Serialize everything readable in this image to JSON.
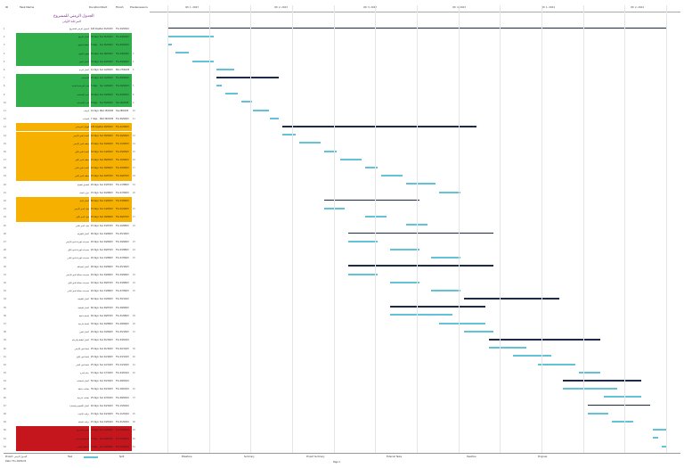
{
  "columns": {
    "id_label": "ID",
    "name_label": "Task Name",
    "duration_label": "Duration",
    "start_label": "Start",
    "finish_label": "Finish",
    "pred_label": "Predecessors"
  },
  "title": "الجدول الزمني للمشروع",
  "subtitle": "المرحلة الأولى",
  "timeline": [
    "Qtr 1, 2023",
    "Qtr 2, 2023",
    "Qtr 3, 2023",
    "Qtr 4, 2023",
    "Qtr 1, 2024",
    "Qtr 2, 2024"
  ],
  "highlight": {
    "green": "#2fae4a",
    "orange": "#f5b000",
    "red": "#c4161c",
    "bar": "#63c1d8"
  },
  "rows": [
    {
      "id": "1",
      "name": "الجدول الزمني للمشروع",
      "dur": "420 days",
      "start": "Sun 01/01/23",
      "finish": "Thu 29/02/24",
      "pred": "",
      "hl": ""
    },
    {
      "id": "2",
      "name": "أعمال الموقع",
      "dur": "30 days",
      "start": "Sun 01/01/23",
      "finish": "Thu 09/02/23",
      "pred": "",
      "hl": "green"
    },
    {
      "id": "3",
      "name": "استلام الموقع",
      "dur": "5 days",
      "start": "Sun 01/01/23",
      "finish": "Thu 05/01/23",
      "pred": "",
      "hl": "green"
    },
    {
      "id": "4",
      "name": "تجهيز الموقع",
      "dur": "10 days",
      "start": "Sun 08/01/23",
      "finish": "Thu 19/01/23",
      "pred": "3",
      "hl": "green"
    },
    {
      "id": "5",
      "name": "أعمال الحفر",
      "dur": "15 days",
      "start": "Sun 22/01/23",
      "finish": "Thu 09/02/23",
      "pred": "4",
      "hl": "green"
    },
    {
      "id": "6",
      "name": "أعمال الردم",
      "dur": "12 days",
      "start": "Sun 12/02/23",
      "finish": "Mon 27/02/23",
      "pred": "5",
      "hl": ""
    },
    {
      "id": "7",
      "name": "الأساسات",
      "dur": "40 days",
      "start": "Sun 12/02/23",
      "finish": "Thu 06/04/23",
      "pred": "",
      "hl": "green"
    },
    {
      "id": "8",
      "name": "صب الخرسانة العادية",
      "dur": "5 days",
      "start": "Sun 12/02/23",
      "finish": "Thu 16/02/23",
      "pred": "5",
      "hl": "green"
    },
    {
      "id": "9",
      "name": "حديد الأساسات",
      "dur": "10 days",
      "start": "Sun 19/02/23",
      "finish": "Thu 02/03/23",
      "pred": "8",
      "hl": "green"
    },
    {
      "id": "10",
      "name": "صب الأساسات",
      "dur": "8 days",
      "start": "Sun 05/03/23",
      "finish": "Tue 14/03/23",
      "pred": "9",
      "hl": "green"
    },
    {
      "id": "11",
      "name": "الرقاب",
      "dur": "10 days",
      "start": "Wed 15/03/23",
      "finish": "Tue 28/03/23",
      "pred": "10",
      "hl": ""
    },
    {
      "id": "12",
      "name": "الميدات",
      "dur": "7 days",
      "start": "Wed 29/03/23",
      "finish": "Thu 06/04/23",
      "pred": "11",
      "hl": ""
    },
    {
      "id": "13",
      "name": "الهيكل الخرساني",
      "dur": "120 days",
      "start": "Sun 09/04/23",
      "finish": "Thu 21/09/23",
      "pred": "",
      "hl": "orange"
    },
    {
      "id": "14",
      "name": "أعمدة الدور الأرضي",
      "dur": "10 days",
      "start": "Sun 09/04/23",
      "finish": "Thu 20/04/23",
      "pred": "12",
      "hl": "orange"
    },
    {
      "id": "15",
      "name": "سقف الدور الأرضي",
      "dur": "15 days",
      "start": "Sun 23/04/23",
      "finish": "Thu 11/05/23",
      "pred": "14",
      "hl": "orange"
    },
    {
      "id": "16",
      "name": "أعمدة الدور الأول",
      "dur": "10 days",
      "start": "Sun 14/05/23",
      "finish": "Thu 25/05/23",
      "pred": "15",
      "hl": "orange"
    },
    {
      "id": "17",
      "name": "سقف الدور الأول",
      "dur": "15 days",
      "start": "Sun 28/05/23",
      "finish": "Thu 15/06/23",
      "pred": "16",
      "hl": "orange"
    },
    {
      "id": "18",
      "name": "أعمدة الدور الثاني",
      "dur": "10 days",
      "start": "Sun 18/06/23",
      "finish": "Thu 29/06/23",
      "pred": "17",
      "hl": "orange"
    },
    {
      "id": "19",
      "name": "سقف الدور الثاني",
      "dur": "15 days",
      "start": "Sun 02/07/23",
      "finish": "Thu 20/07/23",
      "pred": "18",
      "hl": "orange"
    },
    {
      "id": "20",
      "name": "الملحق العلوي",
      "dur": "20 days",
      "start": "Sun 23/07/23",
      "finish": "Thu 17/08/23",
      "pred": "19",
      "hl": ""
    },
    {
      "id": "21",
      "name": "خزان المياه",
      "dur": "15 days",
      "start": "Sun 20/08/23",
      "finish": "Thu 07/09/23",
      "pred": "20",
      "hl": ""
    },
    {
      "id": "22",
      "name": "أعمال البناء",
      "dur": "60 days",
      "start": "Sun 14/05/23",
      "finish": "Thu 03/08/23",
      "pred": "",
      "hl": "orange"
    },
    {
      "id": "23",
      "name": "بلوك الدور الأرضي",
      "dur": "15 days",
      "start": "Sun 14/05/23",
      "finish": "Thu 01/06/23",
      "pred": "15",
      "hl": "orange"
    },
    {
      "id": "24",
      "name": "بلوك الدور الأول",
      "dur": "15 days",
      "start": "Sun 18/06/23",
      "finish": "Thu 06/07/23",
      "pred": "17",
      "hl": "orange"
    },
    {
      "id": "25",
      "name": "بلوك الدور الثاني",
      "dur": "15 days",
      "start": "Sun 23/07/23",
      "finish": "Thu 10/08/23",
      "pred": "19",
      "hl": ""
    },
    {
      "id": "26",
      "name": "أعمال الكهرباء",
      "dur": "90 days",
      "start": "Sun 04/06/23",
      "finish": "Thu 05/10/23",
      "pred": "",
      "hl": ""
    },
    {
      "id": "27",
      "name": "تمديدات كهرباء الدور الأرضي",
      "dur": "20 days",
      "start": "Sun 04/06/23",
      "finish": "Thu 29/06/23",
      "pred": "23",
      "hl": ""
    },
    {
      "id": "28",
      "name": "تمديدات كهرباء الدور الأول",
      "dur": "20 days",
      "start": "Sun 09/07/23",
      "finish": "Thu 03/08/23",
      "pred": "24",
      "hl": ""
    },
    {
      "id": "29",
      "name": "تمديدات كهرباء الدور الثاني",
      "dur": "20 days",
      "start": "Sun 13/08/23",
      "finish": "Thu 07/09/23",
      "pred": "25",
      "hl": ""
    },
    {
      "id": "30",
      "name": "أعمال السباكة",
      "dur": "90 days",
      "start": "Sun 04/06/23",
      "finish": "Thu 05/10/23",
      "pred": "",
      "hl": ""
    },
    {
      "id": "31",
      "name": "تمديدات سباكة الدور الأرضي",
      "dur": "20 days",
      "start": "Sun 04/06/23",
      "finish": "Thu 29/06/23",
      "pred": "23",
      "hl": ""
    },
    {
      "id": "32",
      "name": "تمديدات سباكة الدور الأول",
      "dur": "20 days",
      "start": "Sun 09/07/23",
      "finish": "Thu 03/08/23",
      "pred": "24",
      "hl": ""
    },
    {
      "id": "33",
      "name": "تمديدات سباكة الدور الثاني",
      "dur": "20 days",
      "start": "Sun 13/08/23",
      "finish": "Thu 07/09/23",
      "pred": "25",
      "hl": ""
    },
    {
      "id": "34",
      "name": "أعمال التكييف",
      "dur": "60 days",
      "start": "Sun 10/09/23",
      "finish": "Thu 30/11/23",
      "pred": "",
      "hl": ""
    },
    {
      "id": "35",
      "name": "أعمال اللياسة",
      "dur": "60 days",
      "start": "Sun 09/07/23",
      "finish": "Thu 28/09/23",
      "pred": "",
      "hl": ""
    },
    {
      "id": "36",
      "name": "لياسة داخلية",
      "dur": "40 days",
      "start": "Sun 09/07/23",
      "finish": "Thu 31/08/23",
      "pred": "28",
      "hl": ""
    },
    {
      "id": "37",
      "name": "لياسة خارجية",
      "dur": "30 days",
      "start": "Sun 20/08/23",
      "finish": "Thu 28/09/23",
      "pred": "29",
      "hl": ""
    },
    {
      "id": "38",
      "name": "أعمال العزل",
      "dur": "20 days",
      "start": "Sun 10/09/23",
      "finish": "Thu 05/10/23",
      "pred": "21",
      "hl": ""
    },
    {
      "id": "39",
      "name": "أعمال البلاط والرخام",
      "dur": "70 days",
      "start": "Sun 01/10/23",
      "finish": "Thu 04/01/24",
      "pred": "",
      "hl": ""
    },
    {
      "id": "40",
      "name": "بلاط الدور الأرضي",
      "dur": "25 days",
      "start": "Sun 01/10/23",
      "finish": "Thu 02/11/23",
      "pred": "36",
      "hl": ""
    },
    {
      "id": "41",
      "name": "بلاط الدور الأول",
      "dur": "25 days",
      "start": "Sun 22/10/23",
      "finish": "Thu 23/11/23",
      "pred": "40",
      "hl": ""
    },
    {
      "id": "42",
      "name": "بلاط الدور الثاني",
      "dur": "25 days",
      "start": "Sun 12/11/23",
      "finish": "Thu 14/12/23",
      "pred": "41",
      "hl": ""
    },
    {
      "id": "43",
      "name": "رخام الدرج",
      "dur": "15 days",
      "start": "Sun 17/12/23",
      "finish": "Thu 04/01/24",
      "pred": "42",
      "hl": ""
    },
    {
      "id": "44",
      "name": "أعمال الدهانات",
      "dur": "50 days",
      "start": "Sun 03/12/23",
      "finish": "Thu 08/02/24",
      "pred": "",
      "hl": ""
    },
    {
      "id": "45",
      "name": "دهانات داخلية",
      "dur": "35 days",
      "start": "Sun 03/12/23",
      "finish": "Thu 18/01/24",
      "pred": "42",
      "hl": ""
    },
    {
      "id": "46",
      "name": "دهانات خارجية",
      "dur": "25 days",
      "start": "Sun 07/01/24",
      "finish": "Thu 08/02/24",
      "pred": "37",
      "hl": ""
    },
    {
      "id": "47",
      "name": "أعمال الألمنيوم والنجارة",
      "dur": "40 days",
      "start": "Sun 24/12/23",
      "finish": "Thu 15/02/24",
      "pred": "",
      "hl": ""
    },
    {
      "id": "48",
      "name": "تركيب الأبواب",
      "dur": "15 days",
      "start": "Sun 24/12/23",
      "finish": "Thu 11/01/24",
      "pred": "45",
      "hl": ""
    },
    {
      "id": "49",
      "name": "تركيب النوافذ",
      "dur": "15 days",
      "start": "Sun 14/01/24",
      "finish": "Thu 01/02/24",
      "pred": "48",
      "hl": ""
    },
    {
      "id": "50",
      "name": "تسليم المشروع",
      "dur": "10 days",
      "start": "Sun 18/02/24",
      "finish": "Thu 29/02/24",
      "pred": "49",
      "hl": "red"
    },
    {
      "id": "51",
      "name": "الاستلام الابتدائي",
      "dur": "5 days",
      "start": "Sun 18/02/24",
      "finish": "Thu 22/02/24",
      "pred": "50",
      "hl": "red"
    },
    {
      "id": "52",
      "name": "الاستلام النهائي",
      "dur": "5 days",
      "start": "Sun 25/02/24",
      "finish": "Thu 29/02/24",
      "pred": "51",
      "hl": "red"
    }
  ],
  "legend": {
    "project": "Project: الجدول الزمني",
    "date": "Date: Thu 29/02/24",
    "task": "Task",
    "split": "Split",
    "milestone": "Milestone",
    "summary": "Summary",
    "project_summary": "Project Summary",
    "external_tasks": "External Tasks",
    "deadline": "Deadline",
    "progress": "Progress",
    "page": "Page 1"
  }
}
